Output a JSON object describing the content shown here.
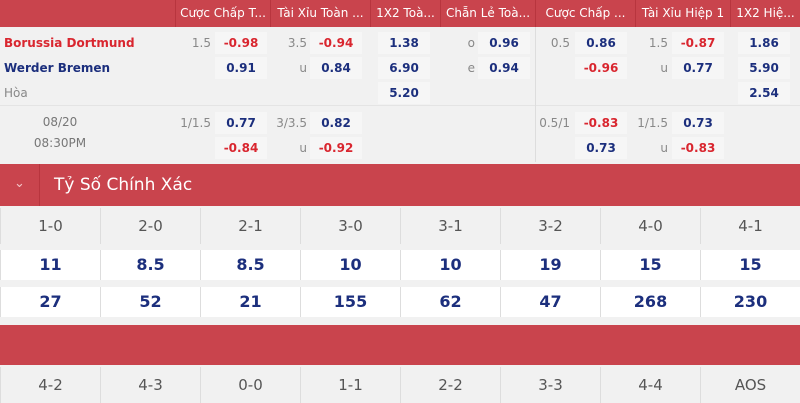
{
  "header": {
    "columns": [
      "Cược Chấp T...",
      "Tài Xỉu Toàn ...",
      "1X2 Toà...",
      "Chẵn Lẻ Toà...",
      "Cược Chấp ...",
      "Tài Xỉu Hiệp 1",
      "1X2 Hiệ..."
    ]
  },
  "match": {
    "home": "Borussia Dortmund",
    "away": "Werder Bremen",
    "draw": "Hòa",
    "date": "08/20",
    "time": "08:30PM",
    "rows": [
      {
        "hcap_line": "1.5",
        "hcap": "-0.98",
        "ou_line": "3.5",
        "ou": "-0.94",
        "x12": "1.38",
        "oe_label": "o",
        "oe": "0.96",
        "h1_hcap_line": "0.5",
        "h1_hcap": "0.86",
        "h1_ou_line": "1.5",
        "h1_ou": "-0.87",
        "h1_x12": "1.86"
      },
      {
        "hcap_line": "",
        "hcap": "0.91",
        "ou_line": "u",
        "ou": "0.84",
        "x12": "6.90",
        "oe_label": "e",
        "oe": "0.94",
        "h1_hcap_line": "",
        "h1_hcap": "-0.96",
        "h1_ou_line": "u",
        "h1_ou": "0.77",
        "h1_x12": "5.90"
      },
      {
        "x12": "5.20",
        "h1_x12": "2.54"
      },
      {
        "hcap_line": "1/1.5",
        "hcap": "0.77",
        "ou_line": "3/3.5",
        "ou": "0.82",
        "h1_hcap_line": "0.5/1",
        "h1_hcap": "-0.83",
        "h1_ou_line": "1/1.5",
        "h1_ou": "0.73"
      },
      {
        "hcap": "-0.84",
        "ou_line": "u",
        "ou": "-0.92",
        "h1_hcap": "0.73",
        "h1_ou_line": "u",
        "h1_ou": "-0.83"
      }
    ]
  },
  "correct_score": {
    "title": "Tỷ Số Chính Xác",
    "collapse_icon": "chevron-down-icon",
    "scores": [
      "1-0",
      "2-0",
      "2-1",
      "3-0",
      "3-1",
      "3-2",
      "4-0",
      "4-1"
    ],
    "home_odds": [
      "11",
      "8.5",
      "8.5",
      "10",
      "10",
      "19",
      "15",
      "15"
    ],
    "away_odds": [
      "27",
      "52",
      "21",
      "155",
      "62",
      "47",
      "268",
      "230"
    ],
    "scores2": [
      "4-2",
      "4-3",
      "0-0",
      "1-1",
      "2-2",
      "3-3",
      "4-4",
      "AOS"
    ]
  },
  "colors": {
    "header": "#c9444d",
    "odds": "#1c2f7d",
    "negative": "#d9262f"
  }
}
